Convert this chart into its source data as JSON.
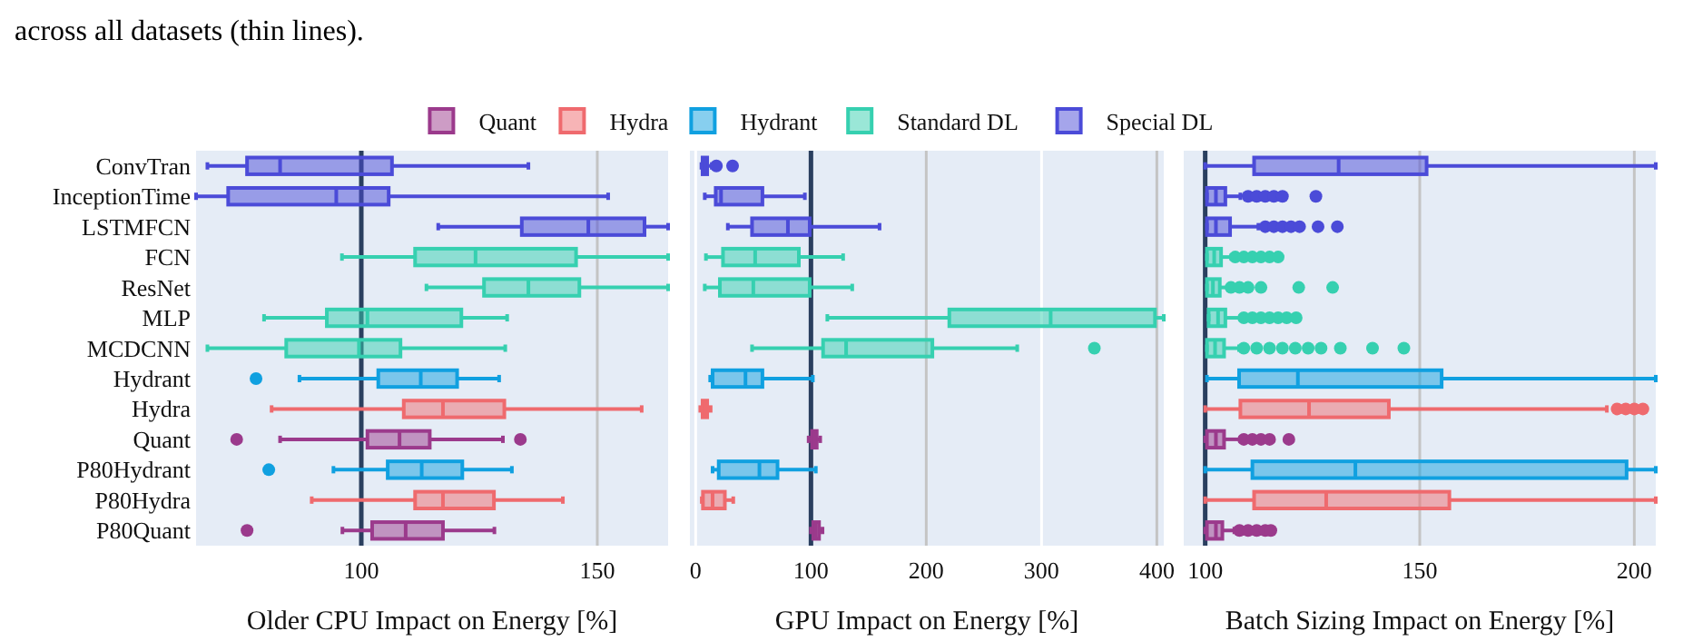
{
  "chart_data": [
    {
      "type": "box",
      "orientation": "horizontal",
      "annotations": [
        "across all datasets (thin lines)."
      ],
      "xlabel": "Older CPU Impact on Energy [%]",
      "legend": "top",
      "categories": [
        "ConvTran",
        "InceptionTime",
        "LSTMFCN",
        "FCN",
        "ResNet",
        "MLP",
        "MCDCNN",
        "Hydrant",
        "Hydra",
        "Quant",
        "P80Hydrant",
        "P80Hydra",
        "P80Quant"
      ],
      "xlim": [
        65,
        165
      ],
      "xticks": [
        100,
        150
      ],
      "ref_lines": [
        {
          "axis": "x",
          "value": 100,
          "color": "#2a3f5f"
        },
        {
          "axis": "x",
          "value": 150,
          "color": "#c4c4c4"
        }
      ],
      "series": [
        {
          "name": "Quant",
          "color": "#9b3a8c",
          "boxes": [
            null,
            null,
            null,
            null,
            null,
            null,
            null,
            null,
            null,
            {
              "low": 82.8,
              "q1": 101.3,
              "median": 108.1,
              "q3": 114.5,
              "high": 130,
              "outliers": [
                73.6,
                133.7
              ]
            },
            null,
            null,
            {
              "low": 96,
              "q1": 102.3,
              "median": 109.4,
              "q3": 117.3,
              "high": 128.2,
              "outliers": [
                75.8
              ]
            }
          ]
        },
        {
          "name": "Hydra",
          "color": "#ef6a6e",
          "boxes": [
            null,
            null,
            null,
            null,
            null,
            null,
            null,
            null,
            {
              "low": 81,
              "q1": 109,
              "median": 117.3,
              "q3": 130.3,
              "high": 159.4
            },
            null,
            null,
            {
              "low": 89.5,
              "q1": 111.4,
              "median": 117.3,
              "q3": 128.1,
              "high": 142.7
            },
            null
          ]
        },
        {
          "name": "Hydrant",
          "color": "#10a0e0",
          "boxes": [
            null,
            null,
            null,
            null,
            null,
            null,
            null,
            {
              "low": 86.9,
              "q1": 103.6,
              "median": 112.6,
              "q3": 120.3,
              "high": 129.2,
              "outliers": [
                77.7
              ]
            },
            null,
            null,
            {
              "low": 94.1,
              "q1": 105.6,
              "median": 112.8,
              "q3": 121.4,
              "high": 131.9,
              "outliers": [
                80.4
              ]
            },
            null,
            null
          ]
        },
        {
          "name": "Standard DL",
          "color": "#36d0b0",
          "boxes": [
            null,
            null,
            null,
            {
              "low": 95.9,
              "q1": 111.4,
              "median": 124.2,
              "q3": 145.5,
              "high": 165
            },
            {
              "low": 113.8,
              "q1": 126,
              "median": 135.4,
              "q3": 146.2,
              "high": 165
            },
            {
              "low": 79.4,
              "q1": 92.7,
              "median": 101.3,
              "q3": 121.2,
              "high": 130.9
            },
            {
              "low": 67.4,
              "q1": 84.1,
              "median": 99.5,
              "q3": 108.3,
              "high": 130.5
            },
            null,
            null,
            null,
            null,
            null,
            null
          ]
        },
        {
          "name": "Special DL",
          "color": "#4b4bd8",
          "boxes": [
            {
              "low": 67.4,
              "q1": 75.8,
              "median": 82.8,
              "q3": 106.5,
              "high": 135.4
            },
            {
              "low": 65,
              "q1": 71.8,
              "median": 94.7,
              "q3": 105.8,
              "high": 152.3
            },
            {
              "low": 116.3,
              "q1": 134,
              "median": 148.1,
              "q3": 160,
              "high": 165
            },
            null,
            null,
            null,
            null,
            null,
            null,
            null,
            null,
            null,
            null
          ]
        }
      ]
    },
    {
      "type": "box",
      "orientation": "horizontal",
      "xlabel": "GPU Impact on Energy [%]",
      "categories": [
        null,
        null,
        null,
        null,
        null,
        null,
        null,
        null,
        null,
        null,
        null,
        null,
        null
      ],
      "xlim": [
        -5,
        406
      ],
      "xticks": [
        0,
        100,
        200,
        300,
        400
      ],
      "ref_lines": [
        {
          "axis": "x",
          "value": 0,
          "color": "#ffffff"
        },
        {
          "axis": "x",
          "value": 100,
          "color": "#2a3f5f"
        },
        {
          "axis": "x",
          "value": 200,
          "color": "#c4c4c4"
        },
        {
          "axis": "x",
          "value": 300,
          "color": "#ffffff"
        },
        {
          "axis": "x",
          "value": 400,
          "color": "#c4c4c4"
        }
      ],
      "series": [
        {
          "color": "#9b3a8c",
          "boxes": [
            null,
            null,
            null,
            null,
            null,
            null,
            null,
            null,
            null,
            {
              "low": 98,
              "q1": 101,
              "median": 103,
              "q3": 105,
              "high": 108
            },
            null,
            null,
            {
              "low": 100,
              "q1": 102,
              "median": 104,
              "q3": 107,
              "high": 110
            }
          ]
        },
        {
          "color": "#ef6a6e",
          "boxes": [
            null,
            null,
            null,
            null,
            null,
            null,
            null,
            null,
            {
              "low": 4,
              "q1": 6,
              "median": 8,
              "q3": 10,
              "high": 13
            },
            null,
            null,
            {
              "low": 5.3,
              "q1": 6.3,
              "median": 14.7,
              "q3": 25.3,
              "high": 32.6
            },
            null
          ]
        },
        {
          "color": "#10a0e0",
          "boxes": [
            null,
            null,
            null,
            null,
            null,
            null,
            null,
            {
              "low": 12.6,
              "q1": 14.7,
              "median": 43.2,
              "q3": 57.9,
              "high": 101.6
            },
            null,
            null,
            {
              "low": 14.7,
              "q1": 20,
              "median": 55.3,
              "q3": 71,
              "high": 104.2
            },
            null,
            null
          ]
        },
        {
          "color": "#36d0b0",
          "boxes": [
            null,
            null,
            null,
            {
              "low": 8.9,
              "q1": 23.7,
              "median": 51.6,
              "q3": 89.5,
              "high": 127.9
            },
            {
              "low": 7.9,
              "q1": 21,
              "median": 50,
              "q3": 98.9,
              "high": 135.8
            },
            {
              "low": 114.2,
              "q1": 220,
              "median": 307.9,
              "q3": 398.4,
              "high": 406
            },
            {
              "low": 48.9,
              "q1": 110.5,
              "median": 130.5,
              "q3": 205.3,
              "high": 278.9,
              "outliers": [
                345.8
              ]
            },
            null,
            null,
            null,
            null,
            null,
            null
          ]
        },
        {
          "color": "#4b4bd8",
          "boxes": [
            {
              "low": 5,
              "q1": 6,
              "median": 8,
              "q3": 10,
              "high": 14,
              "outliers": [
                18,
                32
              ]
            },
            {
              "low": 7.9,
              "q1": 17.4,
              "median": 22,
              "q3": 57.9,
              "high": 94.7
            },
            {
              "low": 27.9,
              "q1": 48.9,
              "median": 80,
              "q3": 98.9,
              "high": 159.5
            },
            null,
            null,
            null,
            null,
            null,
            null,
            null,
            null,
            null,
            null
          ]
        }
      ]
    },
    {
      "type": "box",
      "orientation": "horizontal",
      "xlabel": "Batch Sizing Impact on Energy [%]",
      "categories": [
        null,
        null,
        null,
        null,
        null,
        null,
        null,
        null,
        null,
        null,
        null,
        null,
        null
      ],
      "xlim": [
        95,
        205
      ],
      "xticks": [
        100,
        150,
        200
      ],
      "ref_lines": [
        {
          "axis": "x",
          "value": 100,
          "color": "#2a3f5f"
        },
        {
          "axis": "x",
          "value": 150,
          "color": "#c4c4c4"
        },
        {
          "axis": "x",
          "value": 200,
          "color": "#c4c4c4"
        }
      ],
      "series": [
        {
          "color": "#9b3a8c",
          "boxes": [
            null,
            null,
            null,
            null,
            null,
            null,
            null,
            null,
            null,
            {
              "low": 100,
              "q1": 100.4,
              "median": 102.5,
              "q3": 104.4,
              "high": 108.2,
              "outliers": [
                109,
                111,
                113,
                115,
                119.5
              ]
            },
            null,
            null,
            {
              "low": 100,
              "q1": 100.4,
              "median": 102.5,
              "q3": 104,
              "high": 106.8,
              "outliers": [
                108,
                110,
                112,
                114,
                115.3
              ]
            }
          ]
        },
        {
          "color": "#ef6a6e",
          "boxes": [
            null,
            null,
            null,
            null,
            null,
            null,
            null,
            null,
            {
              "low": 100,
              "q1": 108.2,
              "median": 124.2,
              "q3": 142.8,
              "high": 193.6,
              "outliers": [
                196,
                198,
                200,
                202
              ]
            },
            null,
            null,
            {
              "low": 100,
              "q1": 111.4,
              "median": 128.2,
              "q3": 156.9,
              "high": 205
            },
            null
          ]
        },
        {
          "color": "#10a0e0",
          "boxes": [
            null,
            null,
            null,
            null,
            null,
            null,
            null,
            {
              "low": 100.4,
              "q1": 107.9,
              "median": 121.6,
              "q3": 155.1,
              "high": 205
            },
            null,
            null,
            {
              "low": 100,
              "q1": 111,
              "median": 135,
              "q3": 198.2,
              "high": 205
            },
            null,
            null
          ]
        },
        {
          "color": "#36d0b0",
          "boxes": [
            null,
            null,
            null,
            {
              "low": 100.4,
              "q1": 100.4,
              "median": 102.1,
              "q3": 103.7,
              "high": 106.1,
              "outliers": [
                107,
                109,
                111,
                113,
                115,
                117
              ]
            },
            {
              "low": 100.4,
              "q1": 100.4,
              "median": 101.8,
              "q3": 103.4,
              "high": 105.4,
              "outliers": [
                106,
                108,
                110,
                113,
                121.8,
                129.7
              ]
            },
            {
              "low": 100.8,
              "q1": 100.8,
              "median": 103,
              "q3": 104.7,
              "high": 108.2,
              "outliers": [
                109,
                111,
                113,
                115,
                117,
                119,
                121.2
              ]
            },
            {
              "low": 100.4,
              "q1": 100.4,
              "median": 102.3,
              "q3": 104.4,
              "high": 107.9,
              "outliers": [
                109,
                112,
                115,
                118,
                121,
                124,
                127,
                131.5,
                139,
                146.3
              ]
            },
            null,
            null,
            null,
            null,
            null,
            null
          ]
        },
        {
          "color": "#4b4bd8",
          "boxes": [
            {
              "low": 100,
              "q1": 111.4,
              "median": 131.1,
              "q3": 151.6,
              "high": 205
            },
            {
              "low": 100.4,
              "q1": 100.4,
              "median": 102.5,
              "q3": 104.7,
              "high": 108.2,
              "outliers": [
                110,
                112,
                114,
                116,
                118,
                125.8
              ]
            },
            {
              "low": 100.4,
              "q1": 100.4,
              "median": 102.5,
              "q3": 105.8,
              "high": 112.4,
              "outliers": [
                114,
                116,
                118,
                120,
                122,
                126.3,
                130.8
              ]
            },
            null,
            null,
            null,
            null,
            null,
            null,
            null,
            null,
            null,
            null
          ]
        }
      ]
    }
  ]
}
